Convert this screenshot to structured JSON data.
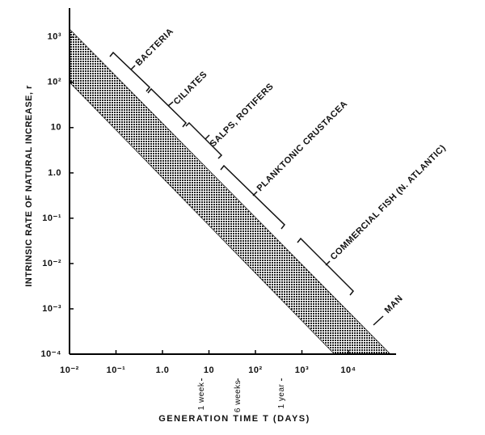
{
  "chart_data": {
    "type": "band",
    "xlabel": "GENERATION TIME T (DAYS)",
    "ylabel": "INTRINSIC RATE OF NATURAL INCREASE, r",
    "log_x": true,
    "log_y": true,
    "xlim": [
      0.01,
      100000
    ],
    "ylim": [
      0.0001,
      4000
    ],
    "xticks": [
      {
        "value": 0.01,
        "label": "10⁻²"
      },
      {
        "value": 0.1,
        "label": "10⁻¹"
      },
      {
        "value": 1,
        "label": "1.0"
      },
      10,
      {
        "value": 100,
        "label": "10²"
      },
      {
        "value": 1000,
        "label": "10³"
      },
      {
        "value": 10000,
        "label": "10⁴"
      }
    ],
    "yticks": [
      {
        "value": 0.0001,
        "label": "10⁻⁴"
      },
      {
        "value": 0.001,
        "label": "10⁻³"
      },
      {
        "value": 0.01,
        "label": "10⁻²"
      },
      {
        "value": 0.1,
        "label": "10⁻¹"
      },
      {
        "value": 1,
        "label": "1.0"
      },
      10,
      {
        "value": 100,
        "label": "10²"
      },
      {
        "value": 1000,
        "label": "10³"
      }
    ],
    "band": {
      "x_upper": [
        0.01,
        80000
      ],
      "upper": [
        1500,
        0.0001
      ],
      "x_lower": [
        0.01,
        5000
      ],
      "lower": [
        100,
        0.0001
      ]
    },
    "color": "#222",
    "time_markers": [
      {
        "label": "1 week",
        "x": 7
      },
      {
        "label": "6 weeks",
        "x": 42
      },
      {
        "label": "1 year",
        "x": 365
      }
    ],
    "groups": [
      "BACTERIA",
      "CILIATES",
      "SALPS, ROTIFERS",
      "PLANKTONIC CRUSTACEA",
      "COMMERCIAL FISH (N. ATLANTIC)",
      "MAN"
    ]
  }
}
